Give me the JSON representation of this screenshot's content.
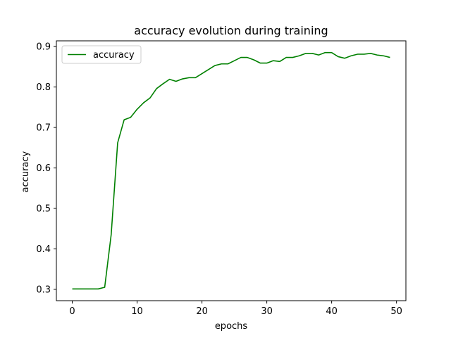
{
  "chart_data": {
    "type": "line",
    "title": "accuracy evolution during training",
    "xlabel": "epochs",
    "ylabel": "accuracy",
    "xlim": [
      -2.45,
      51.45
    ],
    "ylim": [
      0.272,
      0.914
    ],
    "xticks": [
      0,
      10,
      20,
      30,
      40,
      50
    ],
    "yticks": [
      0.3,
      0.4,
      0.5,
      0.6,
      0.7,
      0.8,
      0.9
    ],
    "grid": false,
    "legend_position": "top-left",
    "series": [
      {
        "name": "accuracy",
        "color": "#008000",
        "x": [
          0,
          1,
          2,
          3,
          4,
          5,
          6,
          7,
          8,
          9,
          10,
          11,
          12,
          13,
          14,
          15,
          16,
          17,
          18,
          19,
          20,
          21,
          22,
          23,
          24,
          25,
          26,
          27,
          28,
          29,
          30,
          31,
          32,
          33,
          34,
          35,
          36,
          37,
          38,
          39,
          40,
          41,
          42,
          43,
          44,
          45,
          46,
          47,
          48,
          49
        ],
        "values": [
          0.301,
          0.301,
          0.301,
          0.301,
          0.301,
          0.305,
          0.435,
          0.662,
          0.719,
          0.725,
          0.745,
          0.761,
          0.773,
          0.796,
          0.808,
          0.819,
          0.814,
          0.82,
          0.823,
          0.823,
          0.833,
          0.843,
          0.853,
          0.857,
          0.857,
          0.865,
          0.873,
          0.873,
          0.867,
          0.859,
          0.859,
          0.865,
          0.863,
          0.873,
          0.873,
          0.877,
          0.883,
          0.883,
          0.879,
          0.885,
          0.885,
          0.875,
          0.871,
          0.877,
          0.881,
          0.881,
          0.883,
          0.879,
          0.877,
          0.873
        ]
      }
    ]
  }
}
